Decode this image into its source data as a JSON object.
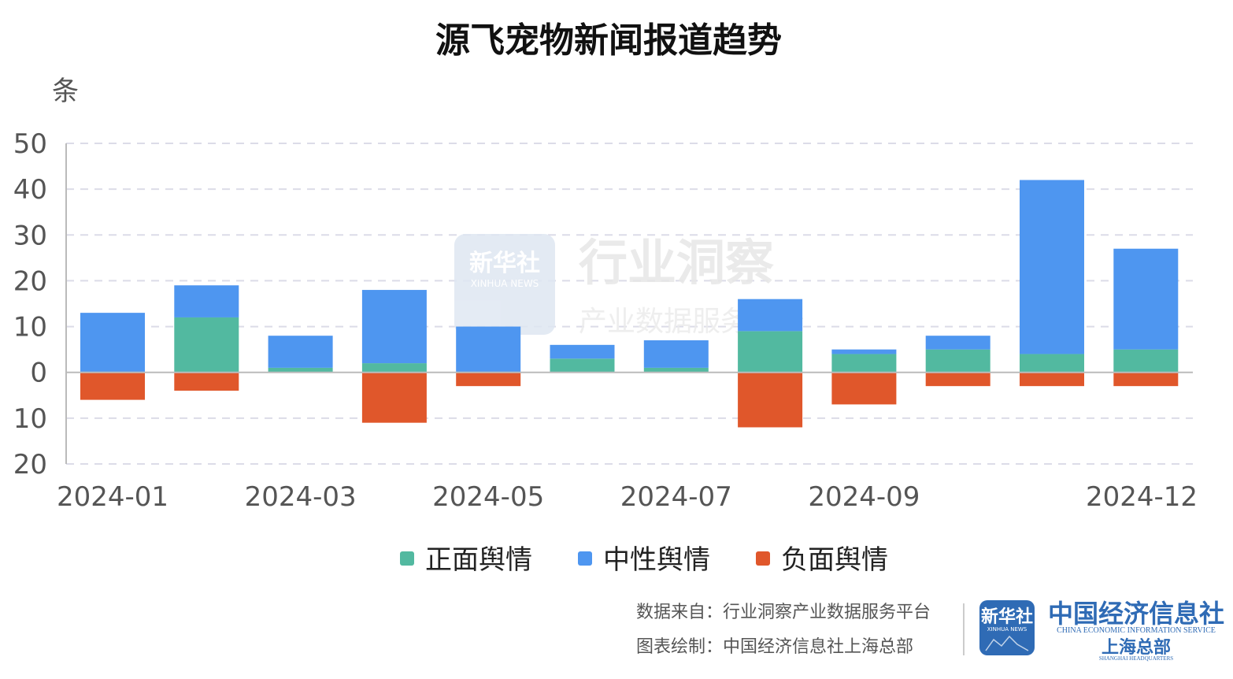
{
  "chart_data": {
    "type": "bar",
    "stacked": true,
    "title": "源飞宠物新闻报道趋势",
    "ylabel": "条",
    "categories": [
      "2024-01",
      "2024-02",
      "2024-03",
      "2024-04",
      "2024-05",
      "2024-06",
      "2024-07",
      "2024-08",
      "2024-09",
      "2024-10",
      "2024-11",
      "2024-12"
    ],
    "x_tick_labels": [
      "2024-01",
      "2024-03",
      "2024-05",
      "2024-07",
      "2024-09",
      "2024-12"
    ],
    "y_ticks": [
      50,
      40,
      30,
      20,
      10,
      0,
      -10,
      -20
    ],
    "y_tick_labels": [
      "50",
      "40",
      "30",
      "20",
      "10",
      "0",
      "10",
      "20"
    ],
    "ylim": [
      -20,
      50
    ],
    "grid": true,
    "legend_position": "bottom",
    "series": [
      {
        "name": "正面舆情",
        "color": "#52b9a0",
        "values": [
          0,
          12,
          1,
          2,
          0,
          3,
          1,
          9,
          4,
          5,
          4,
          5
        ]
      },
      {
        "name": "中性舆情",
        "color": "#4e96f0",
        "values": [
          13,
          7,
          7,
          16,
          10,
          3,
          6,
          7,
          1,
          3,
          38,
          22
        ]
      },
      {
        "name": "负面舆情",
        "color": "#e0572b",
        "values": [
          -6,
          -4,
          0,
          -11,
          -3,
          0,
          0,
          -12,
          -7,
          -3,
          -3,
          -3
        ]
      }
    ]
  },
  "watermark": {
    "logo_cn": "新华社",
    "logo_en": "XINHUA NEWS",
    "title": "行业洞察",
    "subtitle": "产业数据服务平台"
  },
  "footer": {
    "source": "数据来自：行业洞察产业数据服务平台",
    "drawn_by": "图表绘制：中国经济信息社上海总部",
    "logo_cn": "新华社",
    "logo_en": "XINHUA NEWS",
    "org_cn": "中国经济信息社",
    "org_en": "CHINA ECONOMIC INFORMATION SERVICE",
    "branch_cn": "上海总部",
    "branch_en": "SHANGHAI HEADQUARTERS"
  },
  "colors": {
    "grid": "#dcdce8",
    "axis": "#bbbbbb",
    "logo_blue": "#2f6bb5"
  }
}
